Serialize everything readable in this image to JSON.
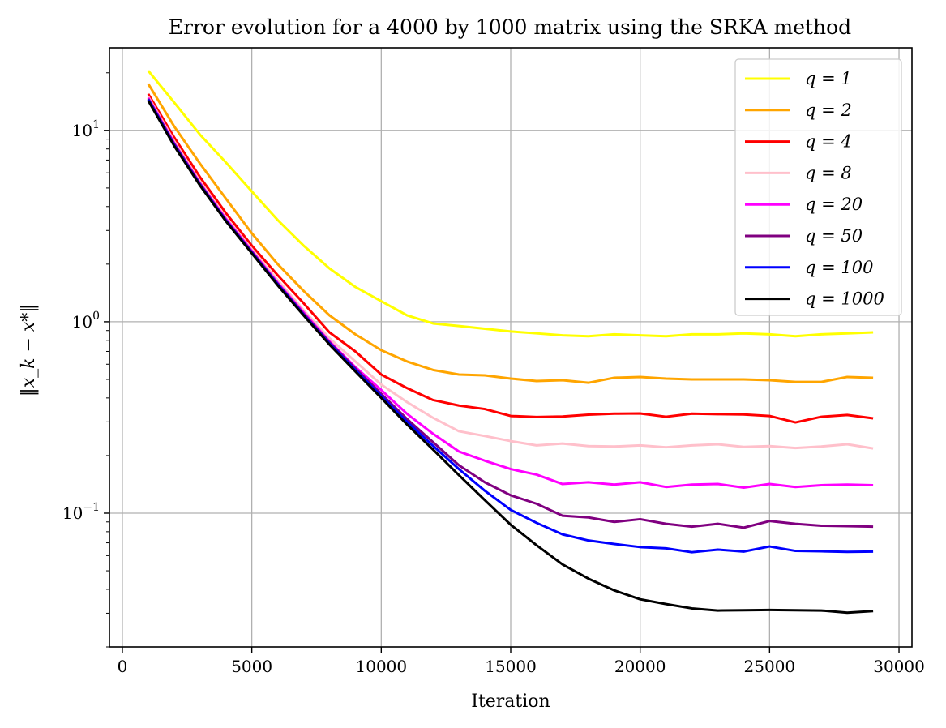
{
  "chart_data": {
    "type": "line",
    "title": "Error evolution for a 4000 by 1000 matrix using the SRKA method",
    "xlabel": "Iteration",
    "ylabel": "‖x_k − x*‖",
    "xlim": [
      -500,
      30500
    ],
    "ylim": [
      0.02,
      27
    ],
    "yscale": "log",
    "grid": true,
    "legend_position": "upper right",
    "x_ticks": [
      0,
      5000,
      10000,
      15000,
      20000,
      25000,
      30000
    ],
    "x_tick_labels": [
      "0",
      "5000",
      "10000",
      "15000",
      "20000",
      "25000",
      "30000"
    ],
    "y_major_ticks": [
      0.1,
      1,
      10
    ],
    "y_tick_labels": [
      {
        "base": "10",
        "exp": "−1"
      },
      {
        "base": "10",
        "exp": "0"
      },
      {
        "base": "10",
        "exp": "1"
      }
    ],
    "x": [
      1000,
      2000,
      3000,
      4000,
      5000,
      6000,
      7000,
      8000,
      9000,
      10000,
      11000,
      12000,
      13000,
      14000,
      15000,
      16000,
      17000,
      18000,
      19000,
      20000,
      21000,
      22000,
      23000,
      24000,
      25000,
      26000,
      27000,
      28000,
      29000
    ],
    "series": [
      {
        "name": "q = 1",
        "color": "#ffff00",
        "values": [
          20.5,
          14.0,
          9.5,
          6.8,
          4.8,
          3.4,
          2.5,
          1.9,
          1.52,
          1.28,
          1.08,
          0.98,
          0.95,
          0.92,
          0.89,
          0.87,
          0.85,
          0.84,
          0.86,
          0.85,
          0.84,
          0.86,
          0.86,
          0.87,
          0.86,
          0.84,
          0.86,
          0.87,
          0.88
        ]
      },
      {
        "name": "q = 2",
        "color": "#ffa500",
        "values": [
          17.5,
          10.5,
          6.7,
          4.4,
          2.9,
          2.0,
          1.45,
          1.08,
          0.86,
          0.71,
          0.62,
          0.56,
          0.53,
          0.525,
          0.505,
          0.49,
          0.495,
          0.48,
          0.51,
          0.515,
          0.505,
          0.5,
          0.5,
          0.5,
          0.495,
          0.485,
          0.485,
          0.515,
          0.51
        ]
      },
      {
        "name": "q = 4",
        "color": "#ff0000",
        "values": [
          15.5,
          9.2,
          5.7,
          3.7,
          2.5,
          1.75,
          1.25,
          0.88,
          0.7,
          0.53,
          0.45,
          0.39,
          0.365,
          0.35,
          0.322,
          0.318,
          0.32,
          0.327,
          0.331,
          0.332,
          0.319,
          0.331,
          0.329,
          0.328,
          0.322,
          0.298,
          0.319,
          0.326,
          0.313
        ]
      },
      {
        "name": "q = 8",
        "color": "#ffc0cb",
        "values": [
          15.0,
          8.8,
          5.4,
          3.5,
          2.4,
          1.65,
          1.15,
          0.82,
          0.62,
          0.47,
          0.38,
          0.315,
          0.268,
          0.253,
          0.238,
          0.226,
          0.231,
          0.224,
          0.223,
          0.226,
          0.221,
          0.226,
          0.229,
          0.222,
          0.224,
          0.219,
          0.223,
          0.229,
          0.218
        ]
      },
      {
        "name": "q = 20",
        "color": "#ff00ff",
        "values": [
          14.8,
          8.6,
          5.3,
          3.45,
          2.35,
          1.6,
          1.12,
          0.79,
          0.58,
          0.44,
          0.33,
          0.26,
          0.21,
          0.188,
          0.17,
          0.159,
          0.142,
          0.145,
          0.141,
          0.145,
          0.137,
          0.141,
          0.142,
          0.136,
          0.142,
          0.137,
          0.14,
          0.141,
          0.14
        ]
      },
      {
        "name": "q = 50",
        "color": "#800080",
        "values": [
          14.6,
          8.5,
          5.25,
          3.4,
          2.32,
          1.58,
          1.1,
          0.78,
          0.57,
          0.42,
          0.31,
          0.235,
          0.178,
          0.145,
          0.124,
          0.112,
          0.097,
          0.095,
          0.09,
          0.093,
          0.088,
          0.085,
          0.088,
          0.084,
          0.091,
          0.088,
          0.086,
          0.0855,
          0.085
        ]
      },
      {
        "name": "q = 100",
        "color": "#0000ff",
        "values": [
          14.5,
          8.4,
          5.2,
          3.38,
          2.3,
          1.57,
          1.09,
          0.77,
          0.56,
          0.41,
          0.3,
          0.225,
          0.17,
          0.131,
          0.104,
          0.089,
          0.0775,
          0.072,
          0.069,
          0.0665,
          0.0655,
          0.0625,
          0.0645,
          0.063,
          0.067,
          0.0635,
          0.0632,
          0.0628,
          0.063
        ]
      },
      {
        "name": "q = 1000",
        "color": "#000000",
        "values": [
          14.3,
          8.3,
          5.15,
          3.35,
          2.28,
          1.55,
          1.08,
          0.76,
          0.55,
          0.4,
          0.29,
          0.215,
          0.158,
          0.117,
          0.087,
          0.068,
          0.054,
          0.0455,
          0.0395,
          0.0355,
          0.0335,
          0.0318,
          0.031,
          0.0311,
          0.0312,
          0.0311,
          0.031,
          0.0302,
          0.0308
        ]
      }
    ]
  }
}
